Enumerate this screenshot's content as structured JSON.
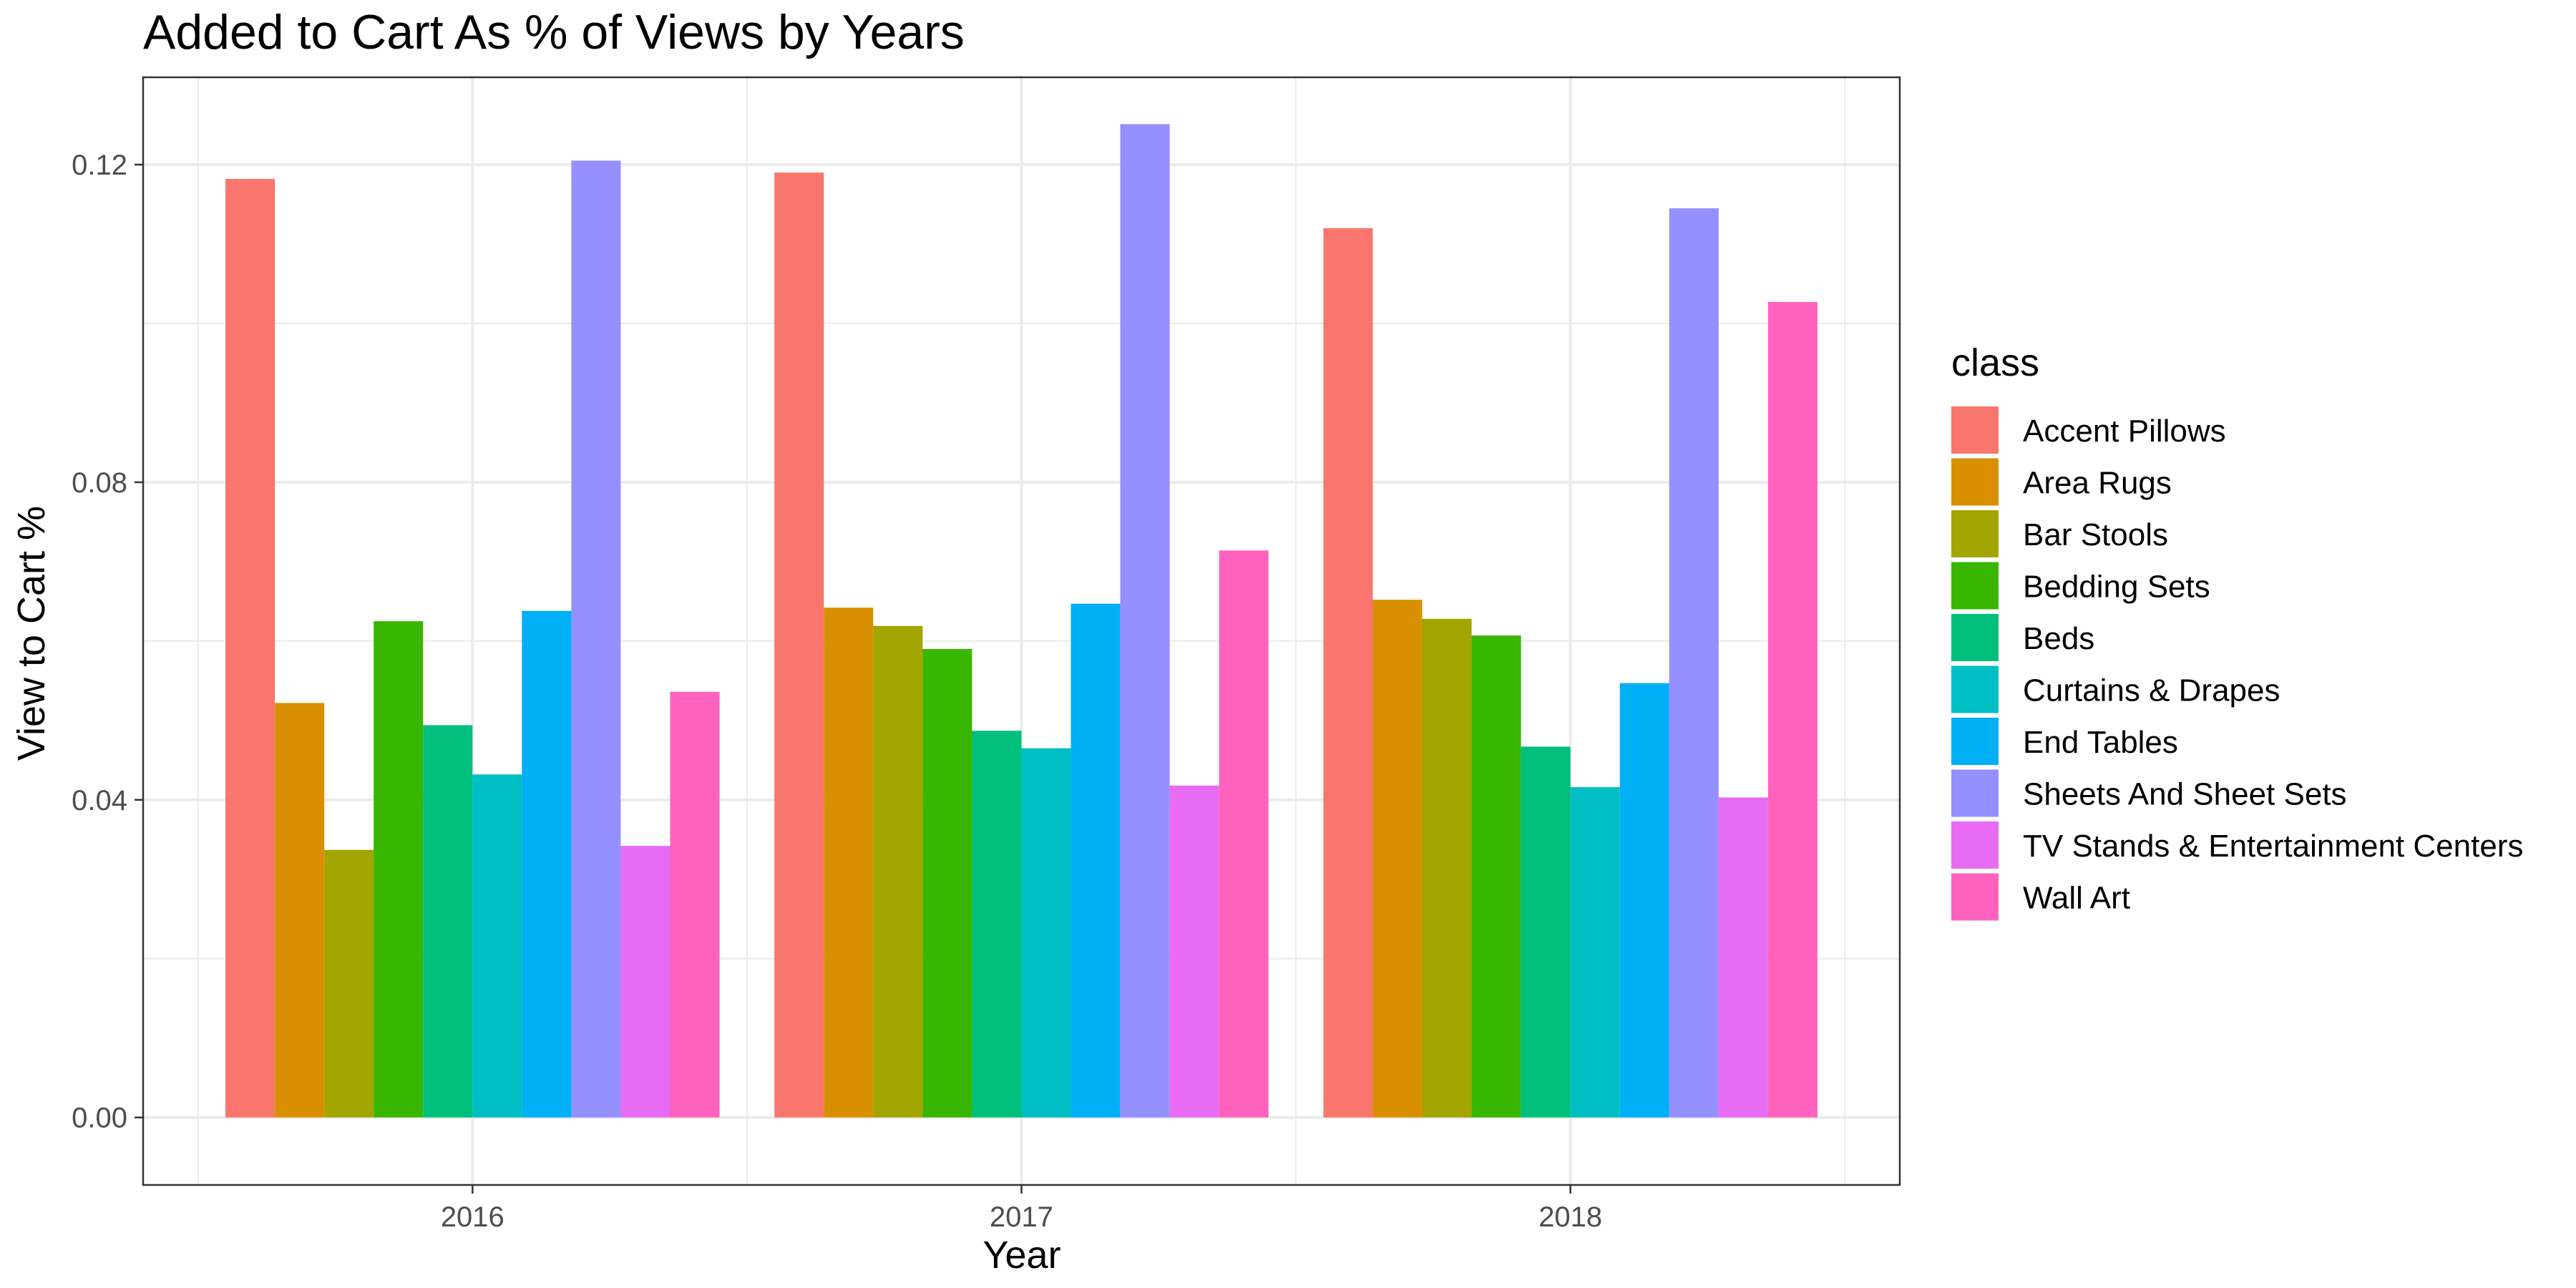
{
  "chart_data": {
    "type": "bar",
    "title": "Added to Cart As % of Views by Years",
    "xlabel": "Year",
    "ylabel": "View to Cart %",
    "categories": [
      "2016",
      "2017",
      "2018"
    ],
    "ylim": [
      -0.0085,
      0.131
    ],
    "yticks": [
      0.0,
      0.04,
      0.08,
      0.12
    ],
    "ytick_labels": [
      "0.00",
      "0.04",
      "0.08",
      "0.12"
    ],
    "grid": true,
    "legend": {
      "title": "class",
      "position": "right"
    },
    "series": [
      {
        "name": "Accent Pillows",
        "color": "#F8766D",
        "values": [
          0.1182,
          0.119,
          0.112
        ]
      },
      {
        "name": "Area Rugs",
        "color": "#D89000",
        "values": [
          0.0522,
          0.0642,
          0.0652
        ]
      },
      {
        "name": "Bar Stools",
        "color": "#A3A500",
        "values": [
          0.0337,
          0.0619,
          0.0628
        ]
      },
      {
        "name": "Bedding Sets",
        "color": "#39B600",
        "values": [
          0.0625,
          0.059,
          0.0607
        ]
      },
      {
        "name": "Beds",
        "color": "#00BF7D",
        "values": [
          0.0494,
          0.0487,
          0.0467
        ]
      },
      {
        "name": "Curtains & Drapes",
        "color": "#00BFC4",
        "values": [
          0.0432,
          0.0465,
          0.0416
        ]
      },
      {
        "name": "End Tables",
        "color": "#00B0F6",
        "values": [
          0.0638,
          0.0647,
          0.0547
        ]
      },
      {
        "name": "Sheets And Sheet Sets",
        "color": "#9590FF",
        "values": [
          0.1205,
          0.1251,
          0.1145
        ]
      },
      {
        "name": "TV Stands & Entertainment Centers",
        "color": "#E76BF3",
        "values": [
          0.0342,
          0.0418,
          0.0403
        ]
      },
      {
        "name": "Wall Art",
        "color": "#FF62BC",
        "values": [
          0.0536,
          0.0714,
          0.1027
        ]
      }
    ]
  }
}
